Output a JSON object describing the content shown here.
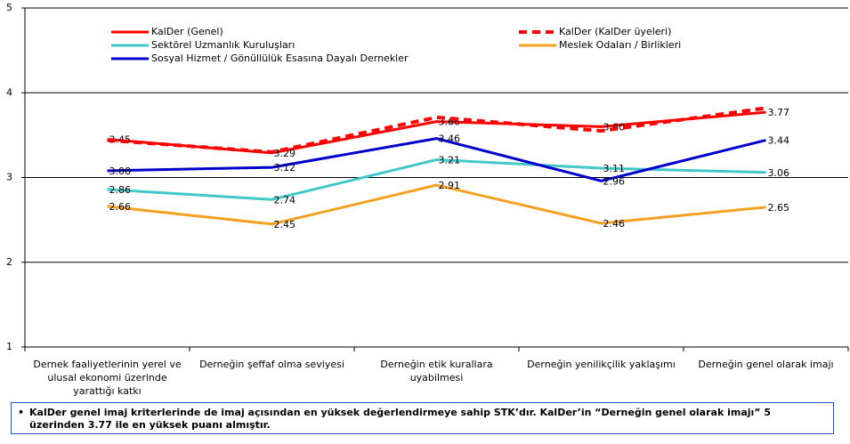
{
  "chart_data": {
    "type": "line",
    "categories": [
      "Dernek faaliyetlerinin yerel ve ulusal ekonomi üzerinde yarattığı katkı",
      "Derneğin şeffaf olma seviyesi",
      "Derneğin etik kurallara uyabilmesi",
      "Derneğin yenilikçilik yaklaşımı",
      "Derneğin genel olarak imajı"
    ],
    "series": [
      {
        "name": "KalDer (Genel)",
        "color": "#ff0000",
        "values": [
          3.45,
          3.29,
          3.66,
          3.6,
          3.77
        ],
        "value_labels": [
          "3.45",
          "3.29",
          "3.66",
          "3.60",
          "3.77"
        ]
      },
      {
        "name": "KalDer (KalDer üyeleri)",
        "color": "#ff0000",
        "dashed": true,
        "values": [
          3.44,
          3.3,
          3.71,
          3.55,
          3.82
        ]
      },
      {
        "name": "Sektörel Uzmanlık Kuruluşları",
        "color": "#40c8c8",
        "values": [
          2.86,
          2.74,
          3.21,
          3.11,
          3.06
        ],
        "value_labels": [
          "2.86",
          "2.74",
          "3.21",
          "3.11",
          "3.06"
        ]
      },
      {
        "name": "Meslek Odaları / Birlikleri",
        "color": "#f5a020",
        "values": [
          2.66,
          2.45,
          2.91,
          2.46,
          2.65
        ],
        "value_labels": [
          "2.66",
          "2.45",
          "2.91",
          "2.46",
          "2.65"
        ]
      },
      {
        "name": "Sosyal Hizmet / Gönüllülük Esasına Dayalı Dernekler",
        "color": "#0000cc",
        "values": [
          3.08,
          3.12,
          3.46,
          2.96,
          3.44
        ],
        "value_labels": [
          "3.08",
          "3.12",
          "3.46",
          "2.96",
          "3.44"
        ]
      }
    ],
    "ylim": [
      1,
      5
    ],
    "yticks": [
      1,
      2,
      3,
      4,
      5
    ],
    "grid": true,
    "legend": "top-left"
  },
  "note": "KalDer genel imaj kriterlerinde de imaj açısından en yüksek değerlendirmeye sahip STK’dır. KalDer’in “Derneğin genel olarak imajı” 5 üzerinden 3.77 ile en yüksek puanı almıştır."
}
